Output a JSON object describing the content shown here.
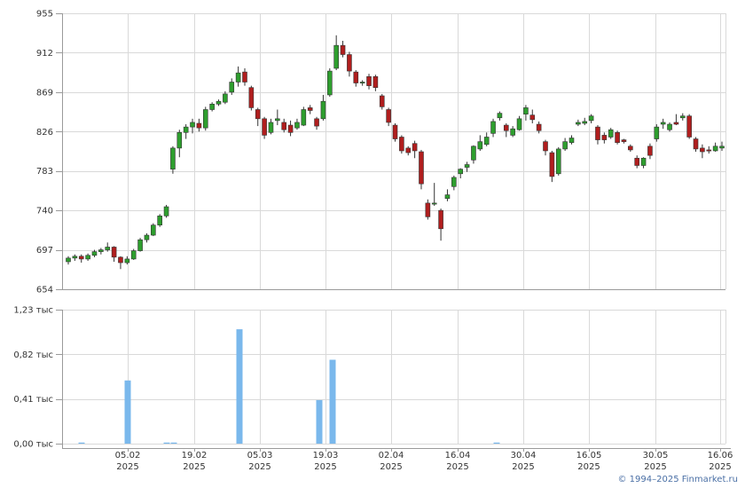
{
  "chart_data": [
    {
      "type": "candlestick",
      "ylim": [
        654,
        955
      ],
      "y_ticks": [
        "955",
        "912",
        "869",
        "826",
        "783",
        "740",
        "697",
        "654"
      ],
      "y_tick_values": [
        955,
        912,
        869,
        826,
        783,
        740,
        697,
        654
      ],
      "x_ticks": [
        {
          "day": "05.02",
          "year": "2025"
        },
        {
          "day": "19.02",
          "year": "2025"
        },
        {
          "day": "05.03",
          "year": "2025"
        },
        {
          "day": "19.03",
          "year": "2025"
        },
        {
          "day": "02.04",
          "year": "2025"
        },
        {
          "day": "16.04",
          "year": "2025"
        },
        {
          "day": "30.04",
          "year": "2025"
        },
        {
          "day": "16.05",
          "year": "2025"
        },
        {
          "day": "30.05",
          "year": "2025"
        },
        {
          "day": "16.06",
          "year": "2025"
        }
      ],
      "candles": [
        [
          684,
          688,
          681,
          690
        ],
        [
          688,
          690,
          685,
          692
        ],
        [
          690,
          687,
          683,
          692
        ],
        [
          687,
          691,
          685,
          693
        ],
        [
          691,
          695,
          689,
          697
        ],
        [
          695,
          697,
          692,
          699
        ],
        [
          697,
          700,
          695,
          705
        ],
        [
          700,
          689,
          684,
          701
        ],
        [
          689,
          683,
          676,
          690
        ],
        [
          683,
          687,
          681,
          690
        ],
        [
          687,
          696,
          686,
          698
        ],
        [
          696,
          708,
          695,
          710
        ],
        [
          708,
          713,
          705,
          715
        ],
        [
          713,
          724,
          712,
          726
        ],
        [
          724,
          734,
          722,
          736
        ],
        [
          734,
          744,
          732,
          746
        ],
        [
          785,
          808,
          780,
          810
        ],
        [
          808,
          825,
          798,
          828
        ],
        [
          825,
          831,
          818,
          834
        ],
        [
          831,
          836,
          824,
          840
        ],
        [
          835,
          830,
          826,
          840
        ],
        [
          830,
          850,
          827,
          853
        ],
        [
          850,
          856,
          848,
          858
        ],
        [
          856,
          859,
          854,
          861
        ],
        [
          858,
          867,
          856,
          870
        ],
        [
          869,
          880,
          866,
          884
        ],
        [
          880,
          890,
          875,
          897
        ],
        [
          891,
          880,
          876,
          895
        ],
        [
          874,
          852,
          849,
          876
        ],
        [
          850,
          840,
          832,
          852
        ],
        [
          840,
          822,
          818,
          842
        ],
        [
          825,
          836,
          823,
          840
        ],
        [
          838,
          840,
          833,
          850
        ],
        [
          836,
          828,
          825,
          840
        ],
        [
          833,
          825,
          821,
          838
        ],
        [
          830,
          836,
          828,
          840
        ],
        [
          833,
          850,
          832,
          853
        ],
        [
          852,
          849,
          845,
          855
        ],
        [
          840,
          832,
          828,
          842
        ],
        [
          840,
          859,
          838,
          866
        ],
        [
          866,
          892,
          864,
          895
        ],
        [
          895,
          920,
          893,
          931
        ],
        [
          920,
          910,
          907,
          925
        ],
        [
          910,
          892,
          886,
          913
        ],
        [
          891,
          879,
          875,
          893
        ],
        [
          880,
          880,
          876,
          882
        ],
        [
          886,
          876,
          872,
          889
        ],
        [
          886,
          874,
          870,
          888
        ],
        [
          865,
          853,
          850,
          867
        ],
        [
          850,
          836,
          832,
          852
        ],
        [
          833,
          818,
          815,
          835
        ],
        [
          820,
          805,
          802,
          822
        ],
        [
          808,
          803,
          800,
          810
        ],
        [
          813,
          805,
          797,
          816
        ],
        [
          804,
          769,
          763,
          806
        ],
        [
          748,
          733,
          730,
          752
        ],
        [
          748,
          748,
          745,
          770
        ],
        [
          740,
          720,
          707,
          742
        ],
        [
          753,
          757,
          750,
          763
        ],
        [
          766,
          776,
          762,
          778
        ],
        [
          780,
          785,
          775,
          786
        ],
        [
          787,
          790,
          782,
          793
        ],
        [
          795,
          810,
          791,
          811
        ],
        [
          807,
          815,
          805,
          822
        ],
        [
          812,
          820,
          810,
          825
        ],
        [
          824,
          837,
          820,
          840
        ],
        [
          841,
          846,
          838,
          848
        ],
        [
          833,
          827,
          820,
          835
        ],
        [
          822,
          829,
          820,
          832
        ],
        [
          828,
          840,
          827,
          843
        ],
        [
          845,
          852,
          838,
          855
        ],
        [
          844,
          839,
          835,
          850
        ],
        [
          834,
          827,
          824,
          837
        ],
        [
          815,
          805,
          800,
          817
        ],
        [
          803,
          777,
          771,
          805
        ],
        [
          780,
          807,
          778,
          809
        ],
        [
          807,
          815,
          805,
          819
        ],
        [
          814,
          819,
          812,
          822
        ],
        [
          834,
          836,
          832,
          839
        ],
        [
          835,
          837,
          833,
          841
        ],
        [
          838,
          843,
          835,
          845
        ],
        [
          831,
          817,
          812,
          833
        ],
        [
          822,
          817,
          813,
          825
        ],
        [
          820,
          828,
          818,
          830
        ],
        [
          825,
          814,
          812,
          827
        ],
        [
          817,
          815,
          813,
          818
        ],
        [
          810,
          806,
          804,
          812
        ],
        [
          797,
          789,
          786,
          800
        ],
        [
          789,
          797,
          786,
          798
        ],
        [
          810,
          800,
          796,
          813
        ],
        [
          818,
          831,
          815,
          834
        ],
        [
          834,
          836,
          829,
          840
        ],
        [
          828,
          834,
          826,
          836
        ],
        [
          836,
          834,
          833,
          845
        ],
        [
          841,
          843,
          838,
          846
        ],
        [
          843,
          820,
          818,
          845
        ],
        [
          818,
          807,
          804,
          820
        ],
        [
          808,
          804,
          797,
          812
        ],
        [
          806,
          805,
          802,
          810
        ],
        [
          805,
          810,
          804,
          814
        ],
        [
          808,
          810,
          805,
          815
        ]
      ],
      "up_color": "#2e9e2e",
      "down_color": "#b01e1e"
    },
    {
      "type": "bar",
      "ylim": [
        0,
        1.23
      ],
      "y_ticks": [
        "1,23 тыс",
        "0,82 тыс",
        "0,41 тыс",
        "0,00 тыс"
      ],
      "y_tick_values": [
        1.23,
        0.82,
        0.41,
        0.0
      ],
      "bars": [
        {
          "x": 92,
          "value": 0.01
        },
        {
          "x": 144,
          "value": 0.58
        },
        {
          "x": 188,
          "value": 0.01
        },
        {
          "x": 196,
          "value": 0.01
        },
        {
          "x": 270,
          "value": 1.05
        },
        {
          "x": 360,
          "value": 0.4
        },
        {
          "x": 375,
          "value": 0.77
        },
        {
          "x": 560,
          "value": 0.01
        }
      ],
      "bar_color": "#7ab8ec"
    }
  ],
  "footer": {
    "credit": "© 1994–2025 Finmarket.ru"
  }
}
